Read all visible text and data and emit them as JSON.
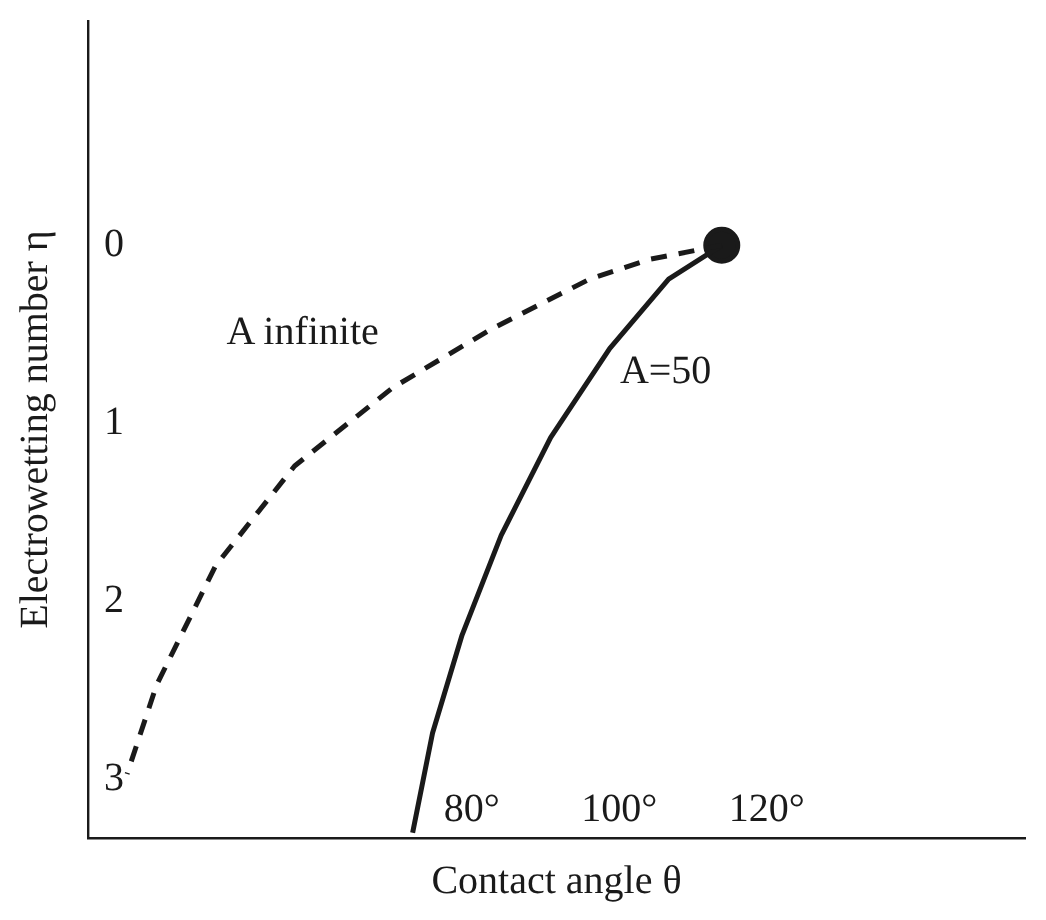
{
  "chart_data": {
    "type": "line",
    "xlabel": "Contact angle θ",
    "ylabel": "Electrowetting number η",
    "xlim": [
      28,
      155
    ],
    "ylim": [
      3.33,
      -1.26
    ],
    "xticks": [
      {
        "value": 80,
        "label": "80°"
      },
      {
        "value": 100,
        "label": "100°"
      },
      {
        "value": 120,
        "label": "120°"
      }
    ],
    "yticks": [
      0,
      1,
      2,
      3
    ],
    "grid": false,
    "legend": false,
    "series": [
      {
        "type": "line",
        "line_style": "dashed",
        "marker": "none",
        "color": "#1a1a1a",
        "x": [
          113.9,
          104,
          96,
          82.7,
          69.3,
          56,
          45.3,
          37.3,
          33.3
        ],
        "values": [
          0,
          0.08,
          0.19,
          0.47,
          0.8,
          1.24,
          1.8,
          2.47,
          2.97
        ]
      },
      {
        "type": "line",
        "line_style": "solid",
        "marker": "none",
        "color": "#1a1a1a",
        "x": [
          113.9,
          106.7,
          98.7,
          90.7,
          84,
          78.7,
          74.7,
          72
        ],
        "values": [
          0,
          0.19,
          0.58,
          1.08,
          1.63,
          2.19,
          2.74,
          3.3
        ]
      },
      {
        "type": "scatter",
        "marker": "circle",
        "color": "#1a1a1a",
        "x": [
          113.9
        ],
        "values": [
          0
        ]
      }
    ],
    "annotations": [
      "A infinite",
      "A=50"
    ]
  }
}
